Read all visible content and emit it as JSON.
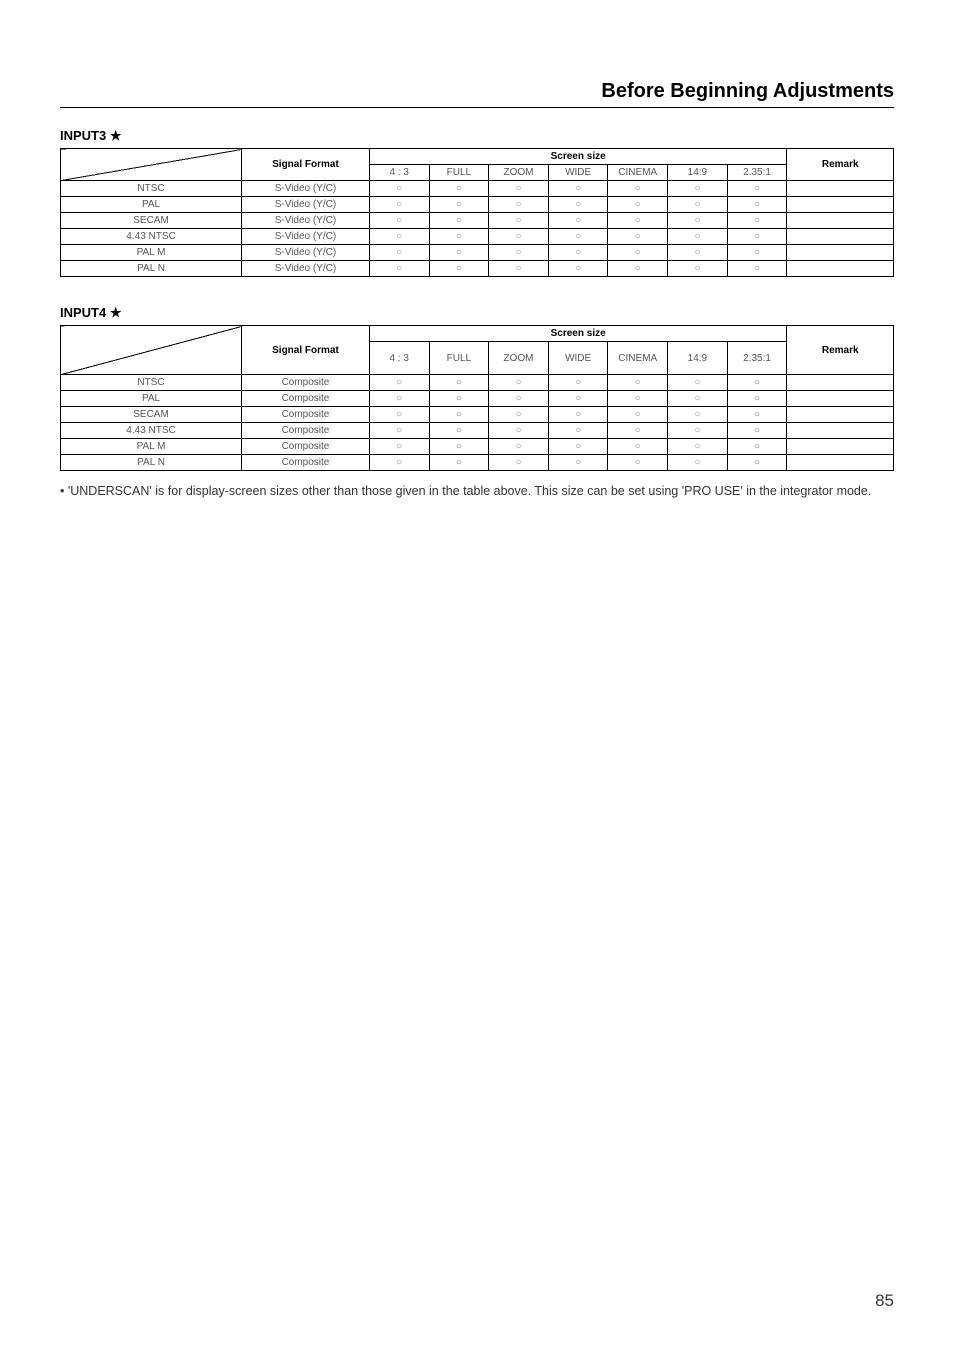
{
  "page": {
    "heading": "Before Beginning Adjustments",
    "number": "85"
  },
  "common": {
    "signal_format_label": "Signal Format",
    "screen_size_label": "Screen size",
    "remark_label": "Remark",
    "circle": "○"
  },
  "columns": [
    "4 : 3",
    "FULL",
    "ZOOM",
    "WIDE",
    "CINEMA",
    "14:9",
    "2.35:1"
  ],
  "table3": {
    "title": "INPUT3 ★",
    "rows": [
      {
        "name": "NTSC",
        "signal": "S-Video (Y/C)"
      },
      {
        "name": "PAL",
        "signal": "S-Video (Y/C)"
      },
      {
        "name": "SECAM",
        "signal": "S-Video (Y/C)"
      },
      {
        "name": "4.43 NTSC",
        "signal": "S-Video (Y/C)"
      },
      {
        "name": "PAL M",
        "signal": "S-Video (Y/C)"
      },
      {
        "name": "PAL N",
        "signal": "S-Video (Y/C)"
      }
    ]
  },
  "table4": {
    "title": "INPUT4 ★",
    "rows": [
      {
        "name": "NTSC",
        "signal": "Composite"
      },
      {
        "name": "PAL",
        "signal": "Composite"
      },
      {
        "name": "SECAM",
        "signal": "Composite"
      },
      {
        "name": "4.43 NTSC",
        "signal": "Composite"
      },
      {
        "name": "PAL M",
        "signal": "Composite"
      },
      {
        "name": "PAL N",
        "signal": "Composite"
      }
    ]
  },
  "note": "•  'UNDERSCAN' is for display-screen sizes other than those given in the table above. This size can be set using 'PRO USE' in the integrator mode."
}
